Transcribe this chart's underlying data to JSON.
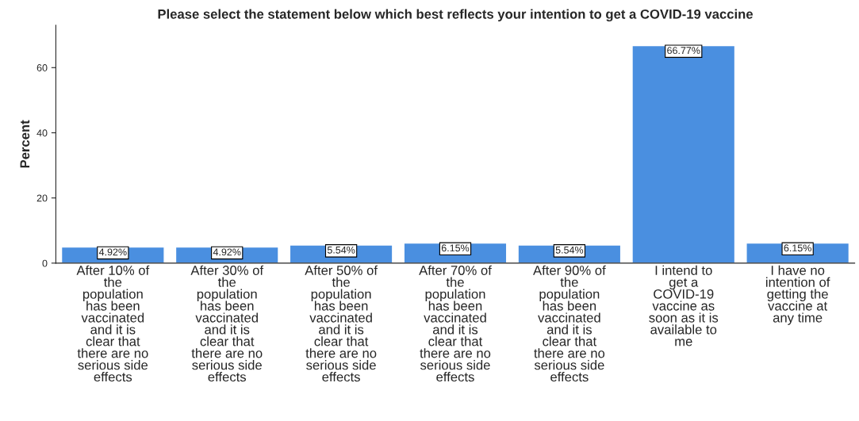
{
  "chart_data": {
    "type": "bar",
    "title": "Please select the statement below which best reflects your intention to get a COVID-19 vaccine",
    "ylabel": "Percent",
    "categories": [
      "After 10% of\nthe\npopulation\nhas been\nvaccinated\nand it is\nclear that\nthere are no\nserious side\neffects",
      "After 30% of\nthe\npopulation\nhas been\nvaccinated\nand it is\nclear that\nthere are no\nserious side\neffects",
      "After 50% of\nthe\npopulation\nhas been\nvaccinated\nand it is\nclear that\nthere are no\nserious side\neffects",
      "After 70% of\nthe\npopulation\nhas been\nvaccinated\nand it is\nclear that\nthere are no\nserious side\neffects",
      "After 90% of\nthe\npopulation\nhas been\nvaccinated\nand it is\nclear that\nthere are no\nserious side\neffects",
      "I intend to\nget a\nCOVID-19\nvaccine as\nsoon as it is\navailable to\nme",
      "I have no\nintention of\ngetting the\nvaccine at\nany time"
    ],
    "values": [
      4.92,
      4.92,
      5.54,
      6.15,
      5.54,
      66.77,
      6.15
    ],
    "value_labels": [
      "4.92%",
      "4.92%",
      "5.54%",
      "6.15%",
      "5.54%",
      "66.77%",
      "6.15%"
    ],
    "color": "#4a8fe0",
    "ylim": [
      0,
      73
    ],
    "yticks": [
      0,
      20,
      40,
      60
    ],
    "grid": false
  }
}
